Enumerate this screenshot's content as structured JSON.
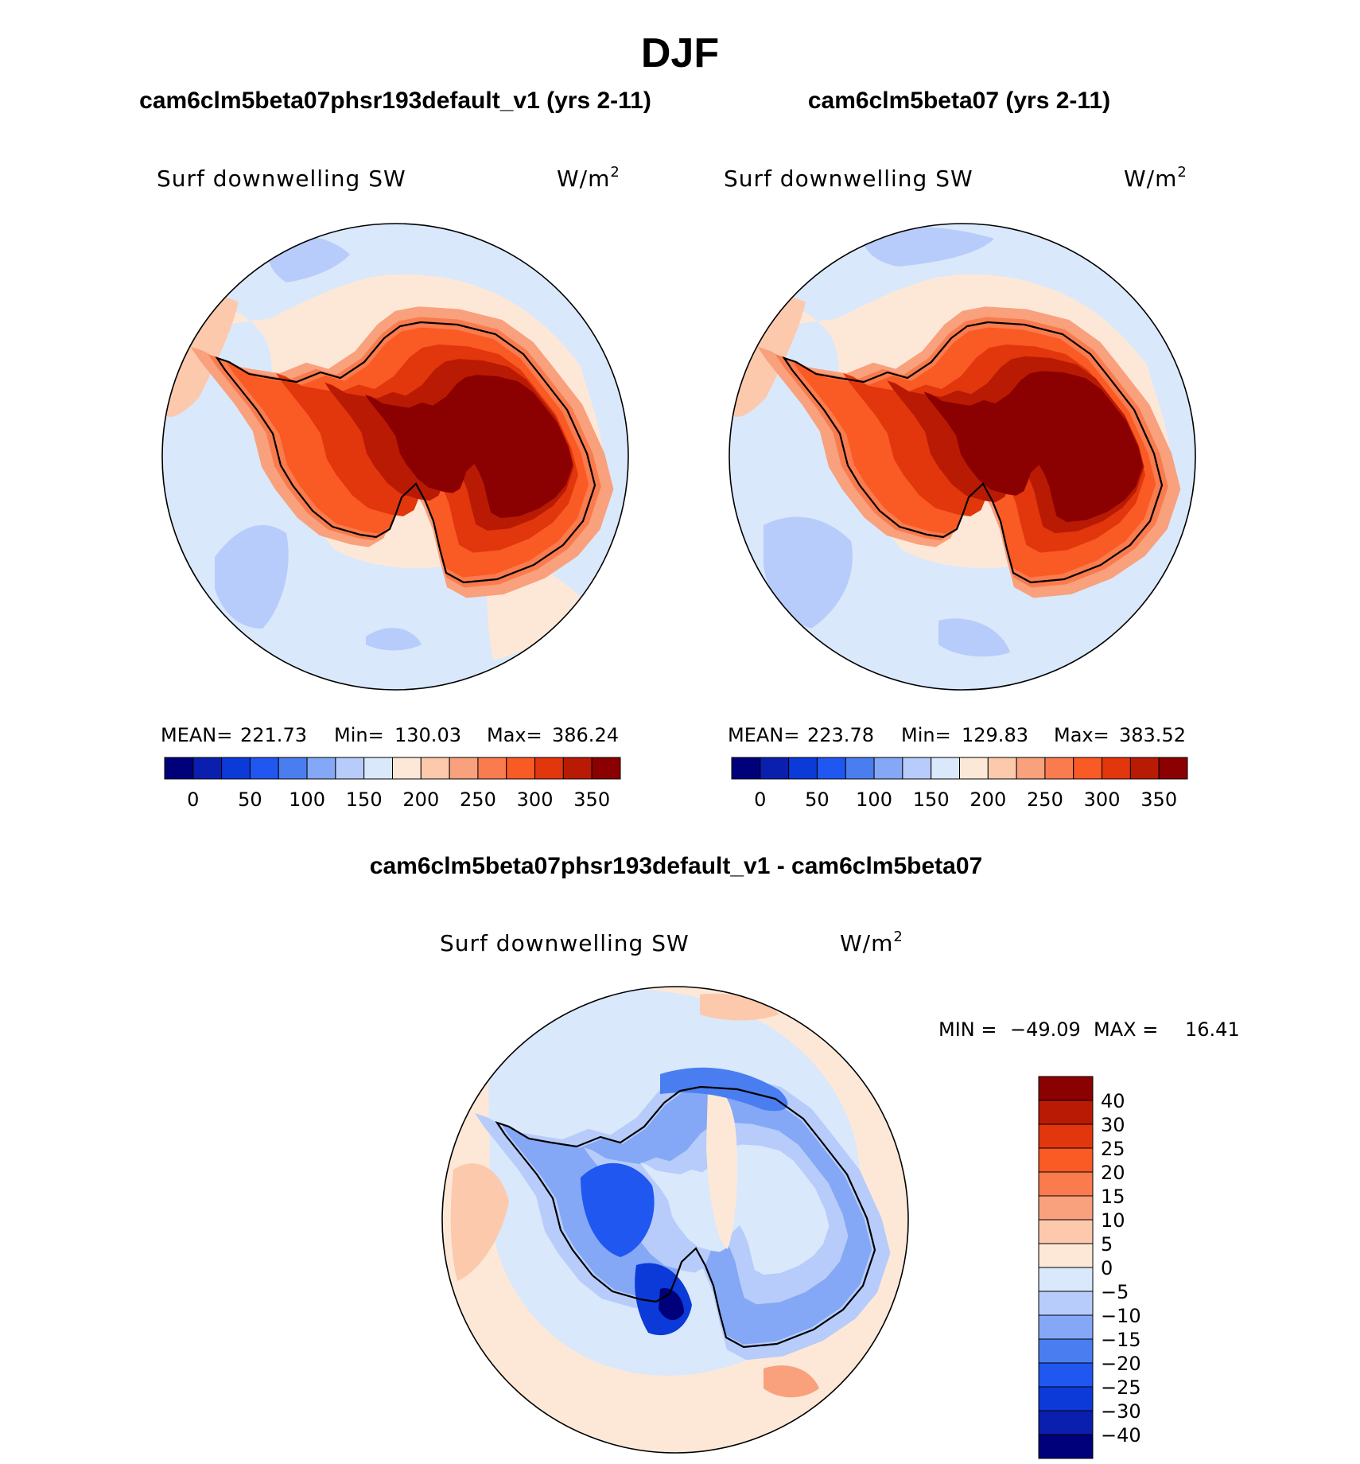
{
  "figure_title": "DJF",
  "chart_data": [
    {
      "type": "heatmap",
      "projection": "south-polar-stereographic",
      "title": "cam6clm5beta07phsr193default_v1 (yrs 2-11)",
      "variable": "Surf downwelling SW",
      "units": "W/m",
      "units_exp": "2",
      "stats": {
        "mean_label": "MEAN=",
        "mean": "221.73",
        "min_label": "Min=",
        "min": "130.03",
        "max_label": "Max=",
        "max": "386.24"
      },
      "colorbar": {
        "orientation": "horizontal",
        "labels": [
          "0",
          "50",
          "100",
          "150",
          "200",
          "250",
          "300",
          "350"
        ],
        "colors": [
          "#00007a",
          "#0a1fae",
          "#0b3ad8",
          "#1f57f0",
          "#4a7ef0",
          "#84a8f5",
          "#b7ccfa",
          "#d9e8fb",
          "#fde8d8",
          "#fcc9ad",
          "#f9a07d",
          "#f97b4e",
          "#fa5a24",
          "#e2360c",
          "#b91a04",
          "#8b0000"
        ]
      }
    },
    {
      "type": "heatmap",
      "projection": "south-polar-stereographic",
      "title": "cam6clm5beta07 (yrs 2-11)",
      "variable": "Surf downwelling SW",
      "units": "W/m",
      "units_exp": "2",
      "stats": {
        "mean_label": "MEAN=",
        "mean": "223.78",
        "min_label": "Min=",
        "min": "129.83",
        "max_label": "Max=",
        "max": "383.52"
      },
      "colorbar": {
        "orientation": "horizontal",
        "labels": [
          "0",
          "50",
          "100",
          "150",
          "200",
          "250",
          "300",
          "350"
        ],
        "colors": [
          "#00007a",
          "#0a1fae",
          "#0b3ad8",
          "#1f57f0",
          "#4a7ef0",
          "#84a8f5",
          "#b7ccfa",
          "#d9e8fb",
          "#fde8d8",
          "#fcc9ad",
          "#f9a07d",
          "#f97b4e",
          "#fa5a24",
          "#e2360c",
          "#b91a04",
          "#8b0000"
        ]
      }
    },
    {
      "type": "heatmap",
      "projection": "south-polar-stereographic",
      "title": "cam6clm5beta07phsr193default_v1 - cam6clm5beta07",
      "variable": "Surf downwelling SW",
      "units": "W/m",
      "units_exp": "2",
      "stats": {
        "min_label": "MIN =",
        "min": "−49.09",
        "max_label": "MAX =",
        "max": "16.41"
      },
      "colorbar": {
        "orientation": "vertical",
        "labels": [
          "40",
          "30",
          "25",
          "20",
          "15",
          "10",
          "5",
          "0",
          "−5",
          "−10",
          "−15",
          "−20",
          "−25",
          "−30",
          "−40"
        ],
        "colors": [
          "#8b0000",
          "#b91a04",
          "#e2360c",
          "#fa5a24",
          "#f97b4e",
          "#f9a07d",
          "#fcc9ad",
          "#fde8d8",
          "#d9e8fb",
          "#b7ccfa",
          "#84a8f5",
          "#4a7ef0",
          "#1f57f0",
          "#0b3ad8",
          "#0a1fae",
          "#00007a"
        ]
      }
    }
  ]
}
